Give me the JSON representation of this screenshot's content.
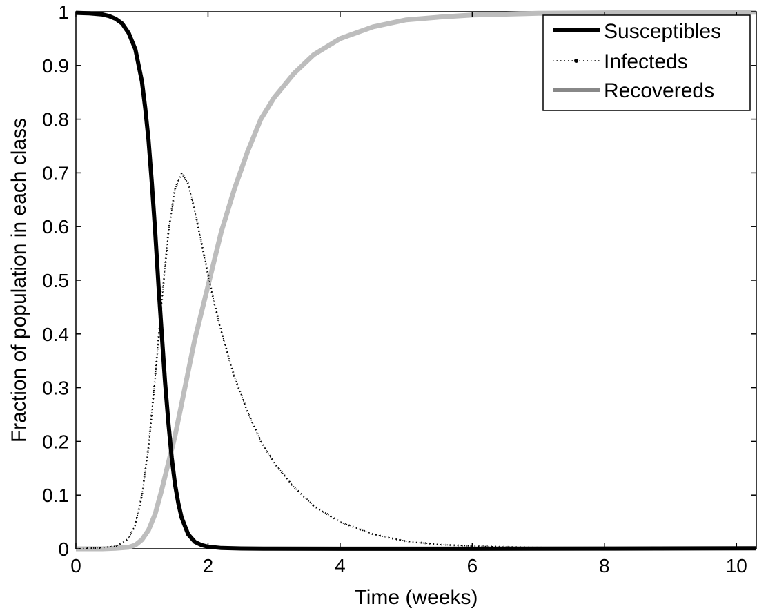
{
  "chart_data": {
    "type": "line",
    "xlabel": "Time (weeks)",
    "ylabel": "Fraction of population in each class",
    "xlim": [
      0,
      10.3
    ],
    "ylim": [
      0,
      1
    ],
    "xticks": [
      0,
      2,
      4,
      6,
      8,
      10
    ],
    "yticks": [
      0,
      0.1,
      0.2,
      0.3,
      0.4,
      0.5,
      0.6,
      0.7,
      0.8,
      0.9,
      1
    ],
    "xtick_labels": [
      "0",
      "2",
      "4",
      "6",
      "8",
      "10"
    ],
    "ytick_labels": [
      "0",
      "0.1",
      "0.2",
      "0.3",
      "0.4",
      "0.5",
      "0.6",
      "0.7",
      "0.8",
      "0.9",
      "1"
    ],
    "grid": false,
    "legend_position": "top-right",
    "series": [
      {
        "name": "Susceptibles",
        "style": "solid",
        "color": "#000000",
        "x": [
          0,
          0.2,
          0.4,
          0.5,
          0.6,
          0.7,
          0.8,
          0.9,
          1.0,
          1.05,
          1.1,
          1.15,
          1.2,
          1.25,
          1.3,
          1.35,
          1.4,
          1.45,
          1.5,
          1.55,
          1.6,
          1.7,
          1.8,
          1.9,
          2.0,
          2.2,
          2.5,
          3.0,
          4.0,
          6.0,
          8.0,
          10.3
        ],
        "y": [
          0.998,
          0.997,
          0.995,
          0.992,
          0.987,
          0.978,
          0.96,
          0.93,
          0.87,
          0.82,
          0.76,
          0.68,
          0.59,
          0.49,
          0.4,
          0.31,
          0.235,
          0.17,
          0.12,
          0.085,
          0.058,
          0.027,
          0.013,
          0.007,
          0.004,
          0.0015,
          0.0007,
          0.0003,
          0.0001,
          0.0001,
          0.0005,
          0.001
        ]
      },
      {
        "name": "Infecteds",
        "style": "dotted",
        "color": "#000000",
        "x": [
          0,
          0.4,
          0.6,
          0.7,
          0.8,
          0.9,
          1.0,
          1.1,
          1.2,
          1.3,
          1.4,
          1.5,
          1.6,
          1.7,
          1.8,
          1.9,
          2.0,
          2.1,
          2.2,
          2.4,
          2.6,
          2.8,
          3.0,
          3.3,
          3.6,
          4.0,
          4.5,
          5.0,
          5.5,
          6.0,
          7.0,
          8.0,
          10.3
        ],
        "y": [
          0.0,
          0.002,
          0.005,
          0.01,
          0.02,
          0.045,
          0.1,
          0.19,
          0.32,
          0.46,
          0.59,
          0.67,
          0.7,
          0.68,
          0.63,
          0.57,
          0.51,
          0.455,
          0.405,
          0.32,
          0.255,
          0.2,
          0.16,
          0.115,
          0.08,
          0.05,
          0.027,
          0.014,
          0.008,
          0.005,
          0.002,
          0.001,
          0.0
        ]
      },
      {
        "name": "Recovereds",
        "style": "solid",
        "color": "#bdbdbd",
        "x": [
          0,
          0.4,
          0.6,
          0.8,
          0.9,
          1.0,
          1.1,
          1.2,
          1.3,
          1.4,
          1.5,
          1.6,
          1.7,
          1.8,
          1.9,
          2.0,
          2.2,
          2.4,
          2.6,
          2.8,
          3.0,
          3.3,
          3.6,
          4.0,
          4.5,
          5.0,
          5.5,
          6.0,
          7.0,
          8.0,
          10.3
        ],
        "y": [
          0.0,
          0.0,
          0.001,
          0.003,
          0.007,
          0.017,
          0.035,
          0.065,
          0.11,
          0.16,
          0.21,
          0.27,
          0.33,
          0.39,
          0.44,
          0.49,
          0.59,
          0.67,
          0.74,
          0.8,
          0.84,
          0.885,
          0.92,
          0.95,
          0.972,
          0.985,
          0.99,
          0.994,
          0.997,
          0.998,
          0.999
        ]
      }
    ]
  },
  "colors": {
    "legend_susceptibles": "#000000",
    "legend_infecteds": "#000000",
    "legend_recovereds": "#888888"
  }
}
